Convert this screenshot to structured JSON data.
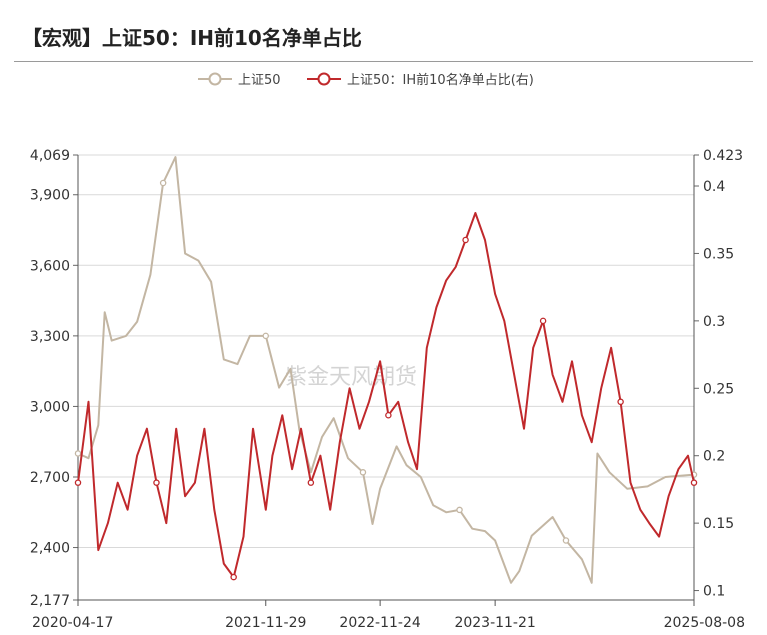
{
  "header": {
    "title": "【宏观】上证50：IH前10名净单占比"
  },
  "watermark": "紫金天风期货",
  "chart_data": {
    "type": "line",
    "title": "【宏观】上证50：IH前10名净单占比",
    "legend_position": "top-center",
    "grid": true,
    "x_ticks": [
      "2020-04-17",
      "2021-11-29",
      "2022-11-24",
      "2023-11-21",
      "2025-08-08"
    ],
    "y_left": {
      "ticks": [
        "4,069",
        "3,900",
        "3,600",
        "3,300",
        "3,000",
        "2,700",
        "2,400",
        "2,177"
      ],
      "ylim": [
        2177,
        4069
      ]
    },
    "y_right": {
      "ticks": [
        "0.423",
        "0.4",
        "0.35",
        "0.3",
        "0.25",
        "0.2",
        "0.15",
        "0.1"
      ],
      "ylim": [
        0.093,
        0.423
      ]
    },
    "series": [
      {
        "name": "上证50",
        "axis": "left",
        "color": "#c3b6a3",
        "x": [
          "2020-04-17",
          "2020-05-20",
          "2020-06-20",
          "2020-07-10",
          "2020-08-01",
          "2020-09-15",
          "2020-10-20",
          "2020-12-01",
          "2021-01-10",
          "2021-02-18",
          "2021-03-20",
          "2021-05-01",
          "2021-06-10",
          "2021-07-20",
          "2021-09-01",
          "2021-10-10",
          "2021-11-29",
          "2022-01-10",
          "2022-02-15",
          "2022-03-15",
          "2022-04-20",
          "2022-05-25",
          "2022-07-01",
          "2022-08-15",
          "2022-10-01",
          "2022-10-31",
          "2022-11-24",
          "2023-01-15",
          "2023-02-15",
          "2023-04-01",
          "2023-05-10",
          "2023-06-20",
          "2023-08-01",
          "2023-09-10",
          "2023-10-20",
          "2023-11-21",
          "2024-01-10",
          "2024-02-05",
          "2024-03-15",
          "2024-05-20",
          "2024-07-01",
          "2024-08-20",
          "2024-09-20",
          "2024-10-08",
          "2024-11-15",
          "2025-01-10",
          "2025-03-15",
          "2025-05-10",
          "2025-08-08"
        ],
        "values": [
          2800,
          2780,
          2920,
          3400,
          3280,
          3300,
          3360,
          3560,
          3950,
          4060,
          3650,
          3620,
          3530,
          3200,
          3180,
          3300,
          3300,
          3080,
          3160,
          2900,
          2720,
          2870,
          2950,
          2780,
          2720,
          2500,
          2650,
          2830,
          2750,
          2700,
          2580,
          2550,
          2560,
          2480,
          2470,
          2430,
          2250,
          2300,
          2450,
          2530,
          2430,
          2350,
          2250,
          2800,
          2720,
          2650,
          2660,
          2700,
          2710
        ]
      },
      {
        "name": "上证50：IH前10名净单占比(右)",
        "axis": "right",
        "color": "#c0292c",
        "x": [
          "2020-04-17",
          "2020-05-20",
          "2020-06-20",
          "2020-07-20",
          "2020-08-20",
          "2020-09-20",
          "2020-10-20",
          "2020-11-20",
          "2020-12-20",
          "2021-01-20",
          "2021-02-20",
          "2021-03-20",
          "2021-04-20",
          "2021-05-20",
          "2021-06-20",
          "2021-07-20",
          "2021-08-20",
          "2021-09-20",
          "2021-10-20",
          "2021-11-29",
          "2021-12-20",
          "2022-01-20",
          "2022-02-20",
          "2022-03-20",
          "2022-04-20",
          "2022-05-20",
          "2022-06-20",
          "2022-07-20",
          "2022-08-20",
          "2022-09-20",
          "2022-10-20",
          "2022-11-24",
          "2022-12-20",
          "2023-01-20",
          "2023-02-20",
          "2023-03-20",
          "2023-04-20",
          "2023-05-20",
          "2023-06-20",
          "2023-07-20",
          "2023-08-20",
          "2023-09-20",
          "2023-10-20",
          "2023-11-21",
          "2023-12-20",
          "2024-01-20",
          "2024-02-20",
          "2024-03-20",
          "2024-04-20",
          "2024-05-20",
          "2024-06-20",
          "2024-07-20",
          "2024-08-20",
          "2024-09-20",
          "2024-10-20",
          "2024-11-20",
          "2024-12-20",
          "2025-01-20",
          "2025-02-20",
          "2025-03-20",
          "2025-04-20",
          "2025-05-20",
          "2025-06-20",
          "2025-07-20",
          "2025-08-08"
        ],
        "values": [
          0.18,
          0.24,
          0.13,
          0.15,
          0.18,
          0.16,
          0.2,
          0.22,
          0.18,
          0.15,
          0.22,
          0.17,
          0.18,
          0.22,
          0.16,
          0.12,
          0.11,
          0.14,
          0.22,
          0.16,
          0.2,
          0.23,
          0.19,
          0.22,
          0.18,
          0.2,
          0.16,
          0.21,
          0.25,
          0.22,
          0.24,
          0.27,
          0.23,
          0.24,
          0.21,
          0.19,
          0.28,
          0.31,
          0.33,
          0.34,
          0.36,
          0.38,
          0.36,
          0.32,
          0.3,
          0.26,
          0.22,
          0.28,
          0.3,
          0.26,
          0.24,
          0.27,
          0.23,
          0.21,
          0.25,
          0.28,
          0.24,
          0.18,
          0.16,
          0.15,
          0.14,
          0.17,
          0.19,
          0.2,
          0.18
        ]
      }
    ]
  }
}
